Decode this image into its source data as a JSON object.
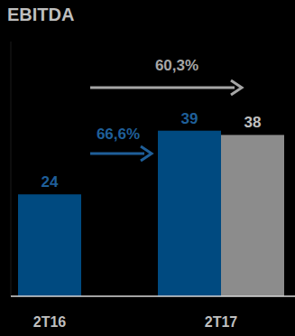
{
  "chart_data": {
    "type": "bar",
    "title": "EBITDA",
    "categories": [
      "2T16",
      "2T17"
    ],
    "series": [
      {
        "color": "#004a80",
        "values": [
          24,
          39
        ]
      },
      {
        "color": "#8c8c8c",
        "values": [
          null,
          38
        ]
      }
    ],
    "ylim": [
      0,
      60
    ],
    "tick_labels": "x",
    "data_labels": true,
    "annotations": [
      "60,3%",
      "66,6%"
    ]
  }
}
